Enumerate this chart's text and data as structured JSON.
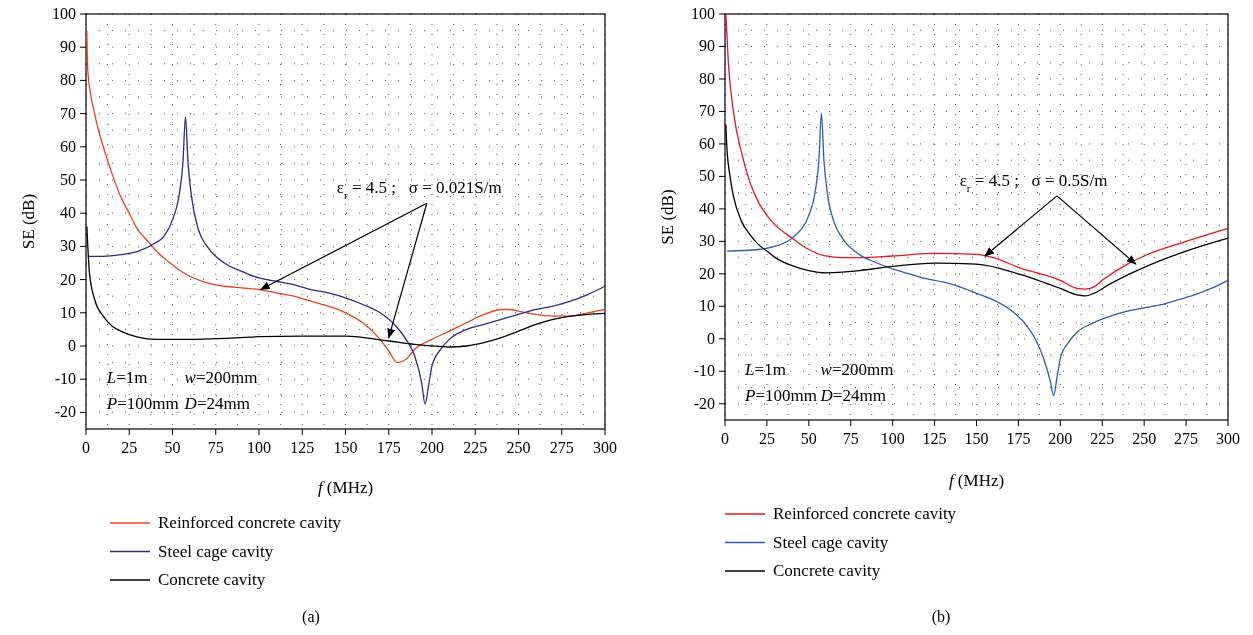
{
  "chart_data": [
    {
      "type": "line",
      "xlabel": "f (MHz)",
      "ylabel": "SE (dB)",
      "xlim": [
        0,
        300
      ],
      "ylim": [
        -25,
        100
      ],
      "xticks": [
        0,
        25,
        50,
        75,
        100,
        125,
        150,
        175,
        200,
        225,
        250,
        275,
        300
      ],
      "yticks": [
        -20,
        -10,
        0,
        10,
        20,
        30,
        40,
        50,
        60,
        70,
        80,
        90,
        100
      ],
      "grid": true,
      "legend": "bottom",
      "line_style": "solid",
      "annotations": [
        {
          "text": "ε$_{r}$ = 4.5 ;   σ = 0.021S/m",
          "x": 101,
          "y": 17
        },
        "L=1m",
        "w=200mm",
        "P=100mm",
        "D=24mm",
        "(a)"
      ],
      "series": [
        {
          "name": "Reinforced concrete cavity",
          "color": "#f0401e",
          "x": [
            0.5,
            1,
            5,
            10,
            15,
            20,
            25,
            30,
            35,
            40,
            45,
            50,
            55,
            60,
            70,
            80,
            90,
            100,
            110,
            120,
            130,
            140,
            150,
            160,
            170,
            175,
            180,
            185,
            190,
            200,
            210,
            220,
            230,
            240,
            245,
            250,
            260,
            270,
            280,
            290,
            300
          ],
          "values": [
            95,
            83,
            70,
            60,
            52,
            45,
            40,
            35,
            32,
            29,
            26.5,
            24.5,
            22.5,
            21,
            19,
            18,
            17.5,
            17,
            16,
            15,
            13.5,
            12,
            10,
            7,
            2,
            -1.5,
            -5,
            -4,
            -1,
            2,
            4.5,
            7,
            9.5,
            11,
            11,
            10.5,
            9.5,
            9,
            9,
            10,
            11
          ]
        },
        {
          "name": "Steel cage cavity",
          "color": "#2e2a8c",
          "x": [
            1,
            10,
            20,
            30,
            40,
            45,
            50,
            54,
            56,
            57.5,
            59,
            61,
            65,
            70,
            80,
            90,
            100,
            110,
            120,
            130,
            140,
            150,
            160,
            170,
            180,
            185,
            190,
            194,
            196,
            198,
            200,
            205,
            210,
            220,
            230,
            240,
            250,
            260,
            270,
            280,
            290,
            300
          ],
          "values": [
            27,
            27,
            27.5,
            28.5,
            31,
            33,
            38,
            46,
            55,
            69,
            55,
            45,
            35,
            30,
            25,
            22.5,
            20.5,
            19.5,
            18.5,
            17,
            16,
            14.5,
            12.5,
            10,
            5.5,
            2,
            -3,
            -11,
            -17.5,
            -12,
            -6,
            -1,
            2,
            5,
            6.5,
            8,
            9.5,
            11,
            12,
            13.5,
            15.5,
            18
          ]
        },
        {
          "name": "Concrete cavity",
          "color": "#000000",
          "x": [
            0.5,
            2,
            5,
            10,
            15,
            20,
            30,
            40,
            50,
            60,
            80,
            100,
            125,
            150,
            175,
            190,
            200,
            210,
            220,
            230,
            240,
            250,
            260,
            270,
            280,
            290,
            300
          ],
          "values": [
            36,
            22,
            14,
            9,
            6,
            4.5,
            2.7,
            2,
            2,
            2,
            2.3,
            2.8,
            3,
            3,
            1.5,
            0.5,
            0,
            -0.3,
            0,
            1,
            2.5,
            4.5,
            6.5,
            8,
            9,
            9.5,
            9.8
          ]
        }
      ]
    },
    {
      "type": "line",
      "xlabel": "f (MHz)",
      "ylabel": "SE (dB)",
      "xlim": [
        0,
        300
      ],
      "ylim": [
        -25,
        100
      ],
      "xticks": [
        0,
        25,
        50,
        75,
        100,
        125,
        150,
        175,
        200,
        225,
        250,
        275,
        300
      ],
      "yticks": [
        -20,
        -10,
        0,
        10,
        20,
        30,
        40,
        50,
        60,
        70,
        80,
        90,
        100
      ],
      "grid": true,
      "legend": "bottom",
      "line_style": "solid",
      "annotations": [
        {
          "text": "ε$_{r}$ = 4.5 ;   σ = 0.5S/m",
          "x": 155,
          "y": 25.5
        },
        "L=1m",
        "w=200mm",
        "P=100mm",
        "D=24mm",
        "(b)"
      ],
      "series": [
        {
          "name": "Reinforced concrete cavity",
          "color": "#e8141e",
          "x": [
            0.5,
            2,
            5,
            10,
            15,
            20,
            25,
            30,
            40,
            50,
            60,
            70,
            80,
            100,
            125,
            150,
            160,
            175,
            200,
            210,
            215,
            220,
            225,
            240,
            250,
            275,
            300
          ],
          "values": [
            100,
            85,
            70,
            57,
            48,
            42,
            38,
            35,
            31,
            27.5,
            25.5,
            25,
            25,
            25.5,
            26.3,
            26,
            25,
            22,
            18,
            15.5,
            15.3,
            16,
            18,
            23,
            25.5,
            30,
            34
          ]
        },
        {
          "name": "Steel cage cavity",
          "color": "#2f5bb5",
          "x": [
            1,
            20,
            30,
            40,
            50,
            54,
            56,
            57.5,
            59,
            61,
            65,
            70,
            80,
            90,
            100,
            110,
            120,
            130,
            140,
            150,
            160,
            170,
            180,
            185,
            190,
            194,
            196,
            198,
            200,
            205,
            210,
            220,
            230,
            240,
            250,
            260,
            270,
            280,
            290,
            300
          ],
          "values": [
            27,
            27.5,
            28.5,
            31,
            38,
            46,
            55,
            69.5,
            55,
            45,
            36,
            31,
            26,
            23.5,
            21.5,
            20,
            18.5,
            17.5,
            16,
            14,
            12,
            9,
            4,
            0,
            -6,
            -13,
            -17.5,
            -12,
            -6,
            -1,
            2,
            5,
            7,
            8.5,
            9.5,
            10.5,
            12,
            13.5,
            15.5,
            18
          ]
        },
        {
          "name": "Concrete cavity",
          "color": "#000000",
          "x": [
            0.5,
            1,
            3,
            5,
            10,
            15,
            20,
            25,
            30,
            40,
            50,
            60,
            70,
            80,
            100,
            125,
            150,
            175,
            200,
            210,
            215,
            220,
            230,
            250,
            275,
            300
          ],
          "values": [
            66,
            60,
            50,
            44,
            36,
            32,
            29,
            27,
            25,
            22.5,
            21,
            20.3,
            20.5,
            21,
            22.3,
            23.3,
            23,
            20,
            15.5,
            13.5,
            13.2,
            14,
            17,
            22,
            27,
            31
          ]
        }
      ]
    }
  ]
}
